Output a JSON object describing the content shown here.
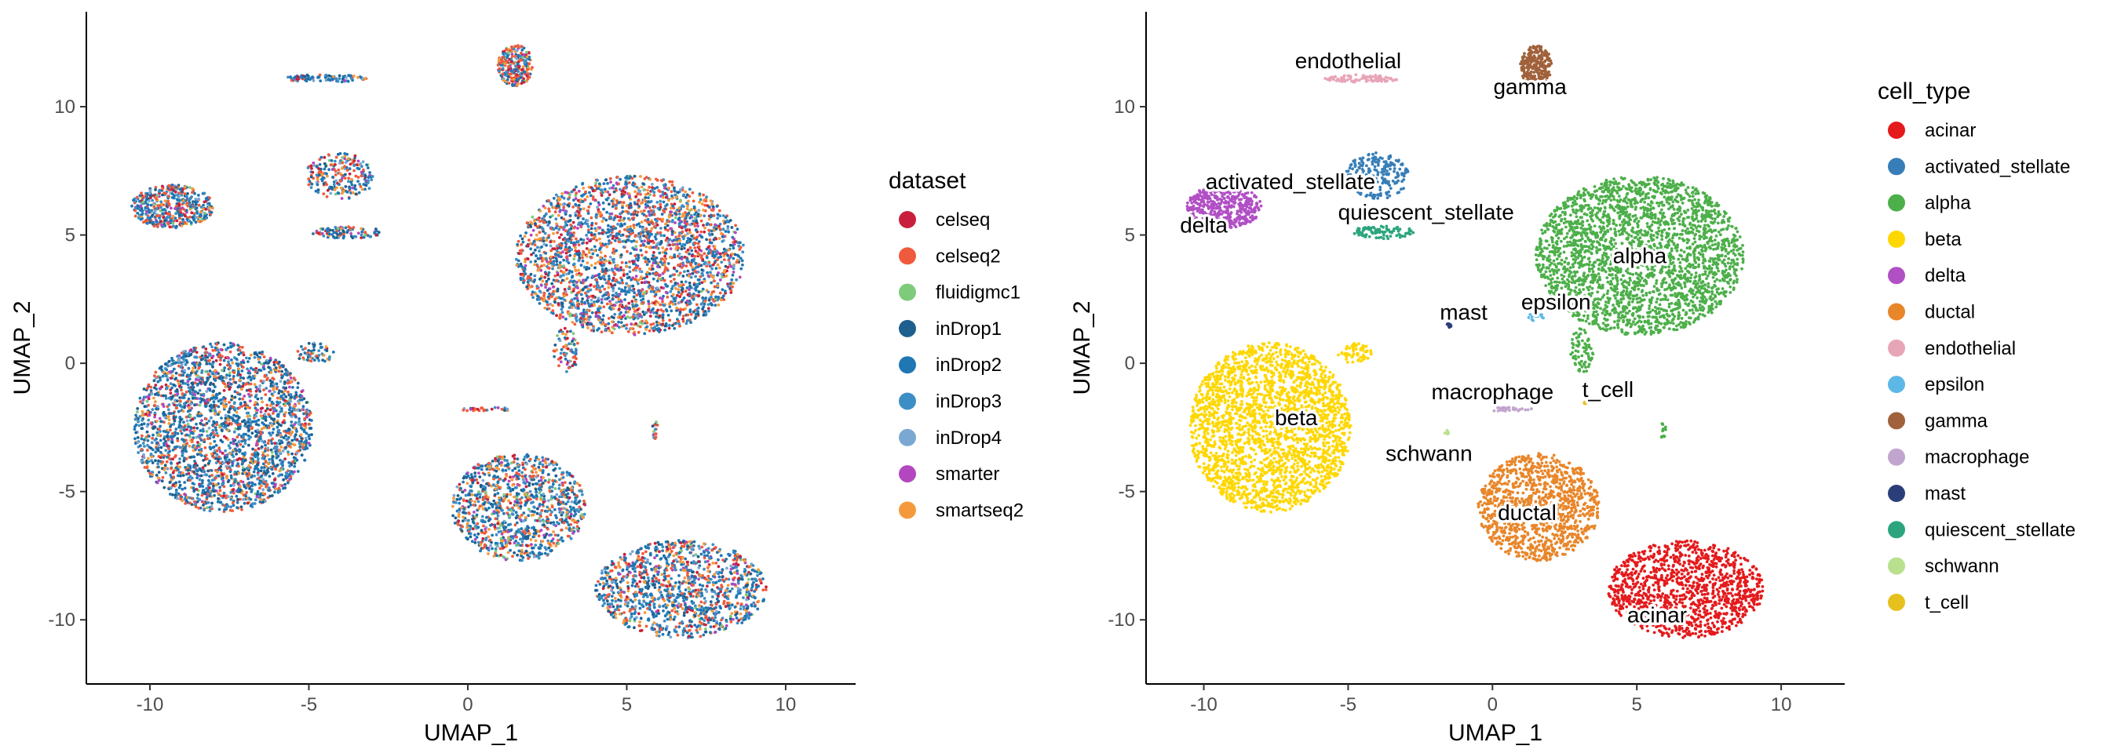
{
  "chart_data": [
    {
      "type": "scatter",
      "title": "",
      "xlabel": "UMAP_1",
      "ylabel": "UMAP_2",
      "xlim": [
        -12,
        12.2
      ],
      "ylim": [
        -12.5,
        13.7
      ],
      "xticks": [
        -10,
        -5,
        0,
        5,
        10
      ],
      "yticks": [
        -10,
        -5,
        0,
        5,
        10
      ],
      "grid": false,
      "legend": {
        "title": "dataset",
        "placement": "right",
        "entries": [
          {
            "name": "celseq",
            "color": "#C8203C"
          },
          {
            "name": "celseq2",
            "color": "#F05A3C"
          },
          {
            "name": "fluidigmc1",
            "color": "#7ECB7A"
          },
          {
            "name": "inDrop1",
            "color": "#1D5F8E"
          },
          {
            "name": "inDrop2",
            "color": "#1F77B4"
          },
          {
            "name": "inDrop3",
            "color": "#3D8EC4"
          },
          {
            "name": "inDrop4",
            "color": "#7AA8D2"
          },
          {
            "name": "smarter",
            "color": "#B347C0"
          },
          {
            "name": "smartseq2",
            "color": "#F59A3C"
          }
        ]
      },
      "clusters": [
        {
          "x": 5.1,
          "y": 4.2,
          "rx": 3.6,
          "ry": 3.1,
          "n": 2600,
          "mix": [
            0.08,
            0.2,
            0.02,
            0.08,
            0.25,
            0.15,
            0.04,
            0.06,
            0.12
          ]
        },
        {
          "x": -7.7,
          "y": -2.5,
          "rx": 2.8,
          "ry": 3.3,
          "n": 2400,
          "mix": [
            0.05,
            0.15,
            0.02,
            0.15,
            0.3,
            0.13,
            0.05,
            0.05,
            0.1
          ]
        },
        {
          "x": 6.7,
          "y": -8.8,
          "rx": 2.7,
          "ry": 1.9,
          "n": 1200,
          "mix": [
            0.08,
            0.15,
            0.02,
            0.1,
            0.3,
            0.15,
            0.04,
            0.05,
            0.11
          ]
        },
        {
          "x": 1.6,
          "y": -5.6,
          "rx": 2.1,
          "ry": 2.1,
          "n": 1100,
          "mix": [
            0.05,
            0.15,
            0.05,
            0.12,
            0.25,
            0.15,
            0.05,
            0.05,
            0.13
          ]
        },
        {
          "x": -9.3,
          "y": 6.1,
          "rx": 1.3,
          "ry": 0.85,
          "n": 450,
          "mix": [
            0.06,
            0.2,
            0.02,
            0.1,
            0.3,
            0.16,
            0.04,
            0.05,
            0.07
          ]
        },
        {
          "x": 1.5,
          "y": 11.6,
          "rx": 0.55,
          "ry": 0.8,
          "n": 250,
          "mix": [
            0.1,
            0.25,
            0.05,
            0.05,
            0.2,
            0.1,
            0.05,
            0.05,
            0.15
          ]
        },
        {
          "x": -4.5,
          "y": 11.1,
          "rx": 1.3,
          "ry": 0.15,
          "n": 100,
          "mix": [
            0.05,
            0.1,
            0.05,
            0.2,
            0.3,
            0.15,
            0.05,
            0.05,
            0.05
          ]
        },
        {
          "x": -4.0,
          "y": 7.3,
          "rx": 1.1,
          "ry": 0.9,
          "n": 220,
          "mix": [
            0.05,
            0.2,
            0.02,
            0.1,
            0.3,
            0.13,
            0.05,
            0.05,
            0.1
          ]
        },
        {
          "x": -3.8,
          "y": 5.1,
          "rx": 1.1,
          "ry": 0.25,
          "n": 90,
          "mix": [
            0.05,
            0.15,
            0.02,
            0.2,
            0.3,
            0.13,
            0.05,
            0.05,
            0.05
          ]
        },
        {
          "x": -4.8,
          "y": 0.4,
          "rx": 0.6,
          "ry": 0.4,
          "n": 60,
          "mix": [
            0.05,
            0.2,
            0.05,
            0.1,
            0.3,
            0.15,
            0.05,
            0.05,
            0.05
          ]
        },
        {
          "x": 3.1,
          "y": 0.5,
          "rx": 0.4,
          "ry": 0.9,
          "n": 70,
          "mix": [
            0.1,
            0.2,
            0.05,
            0.1,
            0.25,
            0.1,
            0.05,
            0.05,
            0.1
          ]
        },
        {
          "x": 0.6,
          "y": -1.8,
          "rx": 0.8,
          "ry": 0.08,
          "n": 30,
          "mix": [
            0.1,
            0.3,
            0.05,
            0.1,
            0.2,
            0.1,
            0.05,
            0.05,
            0.05
          ]
        },
        {
          "x": 5.9,
          "y": -2.6,
          "rx": 0.1,
          "ry": 0.35,
          "n": 15,
          "mix": [
            0.1,
            0.4,
            0.1,
            0.1,
            0.1,
            0.05,
            0.05,
            0.05,
            0.05
          ]
        }
      ]
    },
    {
      "type": "scatter",
      "title": "",
      "xlabel": "UMAP_1",
      "ylabel": "UMAP_2",
      "xlim": [
        -12,
        12.2
      ],
      "ylim": [
        -12.5,
        13.7
      ],
      "xticks": [
        -10,
        -5,
        0,
        5,
        10
      ],
      "yticks": [
        -10,
        -5,
        0,
        5,
        10
      ],
      "grid": false,
      "legend": {
        "title": "cell_type",
        "placement": "right",
        "entries": [
          {
            "name": "acinar",
            "color": "#E41A1C"
          },
          {
            "name": "activated_stellate",
            "color": "#377EB8"
          },
          {
            "name": "alpha",
            "color": "#4DAF4A"
          },
          {
            "name": "beta",
            "color": "#FFD700"
          },
          {
            "name": "delta",
            "color": "#B14FC5"
          },
          {
            "name": "ductal",
            "color": "#E8862A"
          },
          {
            "name": "endothelial",
            "color": "#E8A5B8"
          },
          {
            "name": "epsilon",
            "color": "#5DB8E8"
          },
          {
            "name": "gamma",
            "color": "#A0613B"
          },
          {
            "name": "macrophage",
            "color": "#C2A5CF"
          },
          {
            "name": "mast",
            "color": "#2C3E7A"
          },
          {
            "name": "quiescent_stellate",
            "color": "#2CA57E"
          },
          {
            "name": "schwann",
            "color": "#B8E08E"
          },
          {
            "name": "t_cell",
            "color": "#E6C11E"
          }
        ]
      },
      "clusters": [
        {
          "cell_type": "alpha",
          "x": 5.1,
          "y": 4.2,
          "rx": 3.6,
          "ry": 3.1,
          "n": 2600
        },
        {
          "cell_type": "beta",
          "x": -7.7,
          "y": -2.5,
          "rx": 2.8,
          "ry": 3.3,
          "n": 2400
        },
        {
          "cell_type": "acinar",
          "x": 6.7,
          "y": -8.8,
          "rx": 2.7,
          "ry": 1.9,
          "n": 1200
        },
        {
          "cell_type": "ductal",
          "x": 1.6,
          "y": -5.6,
          "rx": 2.1,
          "ry": 2.1,
          "n": 1100
        },
        {
          "cell_type": "delta",
          "x": -9.3,
          "y": 6.1,
          "rx": 1.3,
          "ry": 0.85,
          "n": 450
        },
        {
          "cell_type": "gamma",
          "x": 1.5,
          "y": 11.6,
          "rx": 0.55,
          "ry": 0.8,
          "n": 250
        },
        {
          "cell_type": "endothelial",
          "x": -4.5,
          "y": 11.1,
          "rx": 1.3,
          "ry": 0.15,
          "n": 100
        },
        {
          "cell_type": "activated_stellate",
          "x": -4.0,
          "y": 7.3,
          "rx": 1.1,
          "ry": 0.9,
          "n": 220
        },
        {
          "cell_type": "quiescent_stellate",
          "x": -3.8,
          "y": 5.1,
          "rx": 1.1,
          "ry": 0.25,
          "n": 90
        },
        {
          "cell_type": "beta",
          "x": -4.8,
          "y": 0.4,
          "rx": 0.6,
          "ry": 0.4,
          "n": 60
        },
        {
          "cell_type": "alpha",
          "x": 3.1,
          "y": 0.5,
          "rx": 0.4,
          "ry": 0.9,
          "n": 70
        },
        {
          "cell_type": "macrophage",
          "x": 0.6,
          "y": -1.8,
          "rx": 0.8,
          "ry": 0.08,
          "n": 30
        },
        {
          "cell_type": "alpha",
          "x": 5.9,
          "y": -2.6,
          "rx": 0.1,
          "ry": 0.35,
          "n": 15
        },
        {
          "cell_type": "mast",
          "x": -1.5,
          "y": 1.5,
          "rx": 0.08,
          "ry": 0.15,
          "n": 10
        },
        {
          "cell_type": "epsilon",
          "x": 1.5,
          "y": 1.8,
          "rx": 0.3,
          "ry": 0.15,
          "n": 15
        },
        {
          "cell_type": "t_cell",
          "x": 3.3,
          "y": -1.5,
          "rx": 0.15,
          "ry": 0.1,
          "n": 12
        },
        {
          "cell_type": "schwann",
          "x": -1.6,
          "y": -2.7,
          "rx": 0.08,
          "ry": 0.1,
          "n": 6
        }
      ],
      "cluster_labels": [
        {
          "text": "endothelial",
          "x": -5.0,
          "y": 11.8
        },
        {
          "text": "gamma",
          "x": 1.3,
          "y": 10.8
        },
        {
          "text": "activated_stellate",
          "x": -7.0,
          "y": 7.1
        },
        {
          "text": "quiescent_stellate",
          "x": -2.3,
          "y": 5.9
        },
        {
          "text": "delta",
          "x": -10.0,
          "y": 5.4
        },
        {
          "text": "alpha",
          "x": 5.1,
          "y": 4.2
        },
        {
          "text": "mast",
          "x": -1.0,
          "y": 2.0
        },
        {
          "text": "epsilon",
          "x": 2.2,
          "y": 2.4
        },
        {
          "text": "macrophage",
          "x": 0.0,
          "y": -1.1
        },
        {
          "text": "t_cell",
          "x": 4.0,
          "y": -1.0
        },
        {
          "text": "beta",
          "x": -6.8,
          "y": -2.1
        },
        {
          "text": "schwann",
          "x": -2.2,
          "y": -3.5
        },
        {
          "text": "ductal",
          "x": 1.2,
          "y": -5.8
        },
        {
          "text": "acinar",
          "x": 5.7,
          "y": -9.8
        }
      ]
    }
  ]
}
